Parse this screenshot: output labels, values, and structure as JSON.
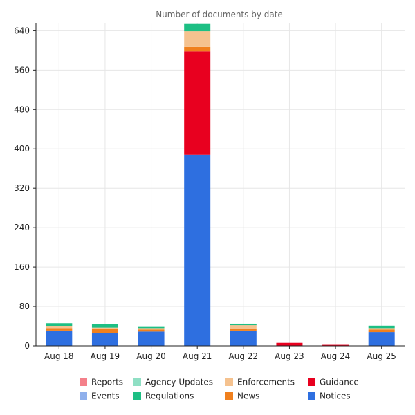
{
  "chart_data": {
    "type": "bar",
    "stacked": true,
    "title": "Number of documents by date",
    "xlabel": "",
    "ylabel": "",
    "ylim": [
      0,
      656
    ],
    "yticks": [
      0,
      80,
      160,
      240,
      320,
      400,
      480,
      560,
      640
    ],
    "grid": true,
    "legend_position": "bottom",
    "categories": [
      "Aug 18",
      "Aug 19",
      "Aug 20",
      "Aug 21",
      "Aug 22",
      "Aug 23",
      "Aug 24",
      "Aug 25"
    ],
    "series": [
      {
        "name": "Notices",
        "color": "#2e6fe0",
        "values": [
          31,
          26,
          29,
          388,
          31,
          0,
          0,
          28
        ]
      },
      {
        "name": "Guidance",
        "color": "#e8001f",
        "values": [
          0,
          0,
          0,
          210,
          0,
          6,
          2,
          0
        ]
      },
      {
        "name": "News",
        "color": "#f0801e",
        "values": [
          5,
          8,
          4,
          9,
          3,
          0,
          0,
          5
        ]
      },
      {
        "name": "Enforcements",
        "color": "#f5c28f",
        "values": [
          4,
          3,
          3,
          32,
          8,
          0,
          0,
          3
        ]
      },
      {
        "name": "Regulations",
        "color": "#1dbf84",
        "values": [
          6,
          7,
          2,
          16,
          3,
          0,
          0,
          5
        ]
      },
      {
        "name": "Agency Updates",
        "color": "#8fdfc4",
        "values": [
          0,
          0,
          1,
          0,
          0,
          0,
          0,
          0
        ]
      },
      {
        "name": "Events",
        "color": "#8fb0ec",
        "values": [
          0,
          0,
          0,
          0,
          0,
          0,
          0,
          0
        ]
      },
      {
        "name": "Reports",
        "color": "#f4808a",
        "values": [
          0,
          0,
          0,
          0,
          0,
          0,
          0,
          0
        ]
      }
    ],
    "legend": [
      [
        "Reports",
        "Agency Updates",
        "Enforcements",
        "Guidance"
      ],
      [
        "Events",
        "Regulations",
        "News",
        "Notices"
      ]
    ]
  }
}
